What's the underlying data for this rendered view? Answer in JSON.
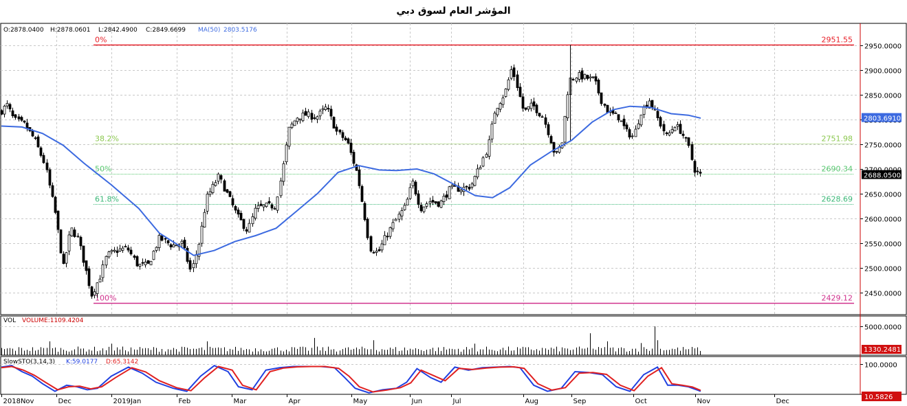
{
  "chart_data": {
    "type": "candlestick",
    "title": "المؤشر العام لسوق دبي",
    "ohlc_legend": {
      "open": "O:2878.0400",
      "high": "H:2878.0601",
      "low": "L:2842.4900",
      "close": "C:2849.6699",
      "ma": "MA(50)",
      "ma_value": "2803.5176"
    },
    "price_axis": {
      "ylim": [
        2405,
        2995
      ],
      "ticks": [
        "2950.0000",
        "2900.0000",
        "2850.0000",
        "2800.0000",
        "2750.0000",
        "2700.0000",
        "2650.0000",
        "2600.0000",
        "2550.0000",
        "2500.0000",
        "2450.0000"
      ],
      "tick_values": [
        2950,
        2900,
        2850,
        2800,
        2750,
        2700,
        2650,
        2600,
        2550,
        2500,
        2450
      ],
      "last_price": "2688.0500",
      "ma_last": "2803.6910"
    },
    "fibonacci": [
      {
        "label": "0%",
        "value": 2951.55,
        "value_label": "2951.55",
        "color": "#e8212a"
      },
      {
        "label": "38.2%",
        "value": 2751.98,
        "value_label": "2751.98",
        "color": "#8cc850"
      },
      {
        "label": "50%",
        "value": 2690.34,
        "value_label": "2690.34",
        "color": "#58c870"
      },
      {
        "label": "61.8%",
        "value": 2628.69,
        "value_label": "2628.69",
        "color": "#3cb878"
      },
      {
        "label": "100%",
        "value": 2429.12,
        "value_label": "2429.12",
        "color": "#d0308c"
      }
    ],
    "months": [
      "2018Nov",
      "Dec",
      "2019Jan",
      "Feb",
      "Mar",
      "Apr",
      "May",
      "Jun",
      "Jul",
      "Aug",
      "Sep",
      "Oct",
      "Nov",
      "Dec"
    ],
    "price_path": [
      {
        "t": 0,
        "v": 2815
      },
      {
        "t": 10,
        "v": 2830
      },
      {
        "t": 20,
        "v": 2800
      },
      {
        "t": 35,
        "v": 2790
      },
      {
        "t": 50,
        "v": 2760
      },
      {
        "t": 65,
        "v": 2710
      },
      {
        "t": 80,
        "v": 2610
      },
      {
        "t": 92,
        "v": 2500
      },
      {
        "t": 103,
        "v": 2580
      },
      {
        "t": 113,
        "v": 2560
      },
      {
        "t": 122,
        "v": 2510
      },
      {
        "t": 133,
        "v": 2445
      },
      {
        "t": 145,
        "v": 2480
      },
      {
        "t": 155,
        "v": 2525
      },
      {
        "t": 170,
        "v": 2535
      },
      {
        "t": 185,
        "v": 2540
      },
      {
        "t": 200,
        "v": 2505
      },
      {
        "t": 215,
        "v": 2505
      },
      {
        "t": 232,
        "v": 2560
      },
      {
        "t": 250,
        "v": 2545
      },
      {
        "t": 265,
        "v": 2550
      },
      {
        "t": 278,
        "v": 2490
      },
      {
        "t": 290,
        "v": 2555
      },
      {
        "t": 300,
        "v": 2640
      },
      {
        "t": 318,
        "v": 2685
      },
      {
        "t": 330,
        "v": 2650
      },
      {
        "t": 345,
        "v": 2605
      },
      {
        "t": 360,
        "v": 2575
      },
      {
        "t": 372,
        "v": 2620
      },
      {
        "t": 385,
        "v": 2625
      },
      {
        "t": 400,
        "v": 2625
      },
      {
        "t": 410,
        "v": 2690
      },
      {
        "t": 420,
        "v": 2780
      },
      {
        "t": 432,
        "v": 2805
      },
      {
        "t": 445,
        "v": 2810
      },
      {
        "t": 460,
        "v": 2805
      },
      {
        "t": 475,
        "v": 2825
      },
      {
        "t": 490,
        "v": 2775
      },
      {
        "t": 505,
        "v": 2755
      },
      {
        "t": 520,
        "v": 2690
      },
      {
        "t": 530,
        "v": 2610
      },
      {
        "t": 538,
        "v": 2540
      },
      {
        "t": 550,
        "v": 2530
      },
      {
        "t": 560,
        "v": 2560
      },
      {
        "t": 575,
        "v": 2595
      },
      {
        "t": 590,
        "v": 2625
      },
      {
        "t": 600,
        "v": 2675
      },
      {
        "t": 612,
        "v": 2620
      },
      {
        "t": 625,
        "v": 2635
      },
      {
        "t": 640,
        "v": 2630
      },
      {
        "t": 655,
        "v": 2660
      },
      {
        "t": 670,
        "v": 2660
      },
      {
        "t": 685,
        "v": 2665
      },
      {
        "t": 698,
        "v": 2705
      },
      {
        "t": 710,
        "v": 2745
      },
      {
        "t": 720,
        "v": 2820
      },
      {
        "t": 735,
        "v": 2855
      },
      {
        "t": 745,
        "v": 2905
      },
      {
        "t": 752,
        "v": 2870
      },
      {
        "t": 762,
        "v": 2815
      },
      {
        "t": 775,
        "v": 2830
      },
      {
        "t": 790,
        "v": 2805
      },
      {
        "t": 800,
        "v": 2765
      },
      {
        "t": 808,
        "v": 2725
      },
      {
        "t": 818,
        "v": 2755
      },
      {
        "t": 828,
        "v": 2880
      },
      {
        "t": 840,
        "v": 2890
      },
      {
        "t": 852,
        "v": 2885
      },
      {
        "t": 865,
        "v": 2880
      },
      {
        "t": 875,
        "v": 2840
      },
      {
        "t": 885,
        "v": 2815
      },
      {
        "t": 900,
        "v": 2805
      },
      {
        "t": 912,
        "v": 2775
      },
      {
        "t": 922,
        "v": 2765
      },
      {
        "t": 932,
        "v": 2815
      },
      {
        "t": 945,
        "v": 2840
      },
      {
        "t": 958,
        "v": 2800
      },
      {
        "t": 970,
        "v": 2765
      },
      {
        "t": 982,
        "v": 2790
      },
      {
        "t": 992,
        "v": 2775
      },
      {
        "t": 1002,
        "v": 2745
      },
      {
        "t": 1010,
        "v": 2700
      },
      {
        "t": 1018,
        "v": 2688
      }
    ],
    "ma50_path": [
      {
        "t": 0,
        "v": 2787
      },
      {
        "t": 30,
        "v": 2785
      },
      {
        "t": 60,
        "v": 2772
      },
      {
        "t": 90,
        "v": 2748
      },
      {
        "t": 120,
        "v": 2712
      },
      {
        "t": 160,
        "v": 2668
      },
      {
        "t": 200,
        "v": 2620
      },
      {
        "t": 230,
        "v": 2570
      },
      {
        "t": 255,
        "v": 2548
      },
      {
        "t": 280,
        "v": 2525
      },
      {
        "t": 310,
        "v": 2535
      },
      {
        "t": 340,
        "v": 2553
      },
      {
        "t": 370,
        "v": 2565
      },
      {
        "t": 400,
        "v": 2580
      },
      {
        "t": 430,
        "v": 2615
      },
      {
        "t": 460,
        "v": 2650
      },
      {
        "t": 490,
        "v": 2693
      },
      {
        "t": 520,
        "v": 2707
      },
      {
        "t": 550,
        "v": 2698
      },
      {
        "t": 575,
        "v": 2697
      },
      {
        "t": 605,
        "v": 2700
      },
      {
        "t": 630,
        "v": 2690
      },
      {
        "t": 660,
        "v": 2668
      },
      {
        "t": 690,
        "v": 2646
      },
      {
        "t": 715,
        "v": 2642
      },
      {
        "t": 740,
        "v": 2662
      },
      {
        "t": 770,
        "v": 2708
      },
      {
        "t": 800,
        "v": 2735
      },
      {
        "t": 830,
        "v": 2758
      },
      {
        "t": 860,
        "v": 2795
      },
      {
        "t": 890,
        "v": 2820
      },
      {
        "t": 915,
        "v": 2827
      },
      {
        "t": 945,
        "v": 2825
      },
      {
        "t": 975,
        "v": 2812
      },
      {
        "t": 1000,
        "v": 2809
      },
      {
        "t": 1018,
        "v": 2803
      }
    ],
    "volume": {
      "label": "VOL",
      "value_label": "VOLUME:1109.4204",
      "tick": "5000.0000",
      "tick_value": 5000,
      "ylim": [
        0,
        6800
      ],
      "last": "1330.2481",
      "spikes": [
        {
          "t": 68,
          "v": 2400
        },
        {
          "t": 160,
          "v": 2000
        },
        {
          "t": 300,
          "v": 2400
        },
        {
          "t": 457,
          "v": 3000
        },
        {
          "t": 540,
          "v": 2600
        },
        {
          "t": 690,
          "v": 2000
        },
        {
          "t": 857,
          "v": 3800
        },
        {
          "t": 880,
          "v": 2400
        },
        {
          "t": 930,
          "v": 2100
        },
        {
          "t": 950,
          "v": 5000
        },
        {
          "t": 955,
          "v": 2600
        }
      ]
    },
    "stochastic": {
      "label": "SlowSTO(3,14,3)",
      "k_label": "K:59.0177",
      "d_label": "D:65.3142",
      "tick": "100.0000",
      "tick_value": 100,
      "ylim": [
        0,
        125
      ],
      "last": "10.5826",
      "k_path": [
        {
          "t": 0,
          "v": 90
        },
        {
          "t": 15,
          "v": 95
        },
        {
          "t": 30,
          "v": 75
        },
        {
          "t": 45,
          "v": 60
        },
        {
          "t": 60,
          "v": 35
        },
        {
          "t": 78,
          "v": 10
        },
        {
          "t": 95,
          "v": 30
        },
        {
          "t": 110,
          "v": 25
        },
        {
          "t": 125,
          "v": 15
        },
        {
          "t": 140,
          "v": 20
        },
        {
          "t": 160,
          "v": 60
        },
        {
          "t": 185,
          "v": 90
        },
        {
          "t": 205,
          "v": 70
        },
        {
          "t": 225,
          "v": 40
        },
        {
          "t": 250,
          "v": 20
        },
        {
          "t": 270,
          "v": 10
        },
        {
          "t": 290,
          "v": 60
        },
        {
          "t": 310,
          "v": 95
        },
        {
          "t": 330,
          "v": 75
        },
        {
          "t": 345,
          "v": 25
        },
        {
          "t": 365,
          "v": 15
        },
        {
          "t": 385,
          "v": 80
        },
        {
          "t": 405,
          "v": 88
        },
        {
          "t": 425,
          "v": 92
        },
        {
          "t": 445,
          "v": 92
        },
        {
          "t": 465,
          "v": 92
        },
        {
          "t": 485,
          "v": 88
        },
        {
          "t": 500,
          "v": 55
        },
        {
          "t": 515,
          "v": 20
        },
        {
          "t": 535,
          "v": 5
        },
        {
          "t": 555,
          "v": 15
        },
        {
          "t": 575,
          "v": 20
        },
        {
          "t": 590,
          "v": 40
        },
        {
          "t": 605,
          "v": 85
        },
        {
          "t": 625,
          "v": 55
        },
        {
          "t": 640,
          "v": 40
        },
        {
          "t": 660,
          "v": 90
        },
        {
          "t": 680,
          "v": 80
        },
        {
          "t": 700,
          "v": 88
        },
        {
          "t": 720,
          "v": 90
        },
        {
          "t": 740,
          "v": 92
        },
        {
          "t": 755,
          "v": 88
        },
        {
          "t": 775,
          "v": 30
        },
        {
          "t": 795,
          "v": 10
        },
        {
          "t": 815,
          "v": 20
        },
        {
          "t": 835,
          "v": 75
        },
        {
          "t": 855,
          "v": 72
        },
        {
          "t": 875,
          "v": 65
        },
        {
          "t": 895,
          "v": 25
        },
        {
          "t": 915,
          "v": 10
        },
        {
          "t": 935,
          "v": 65
        },
        {
          "t": 955,
          "v": 90
        },
        {
          "t": 970,
          "v": 30
        },
        {
          "t": 985,
          "v": 30
        },
        {
          "t": 1000,
          "v": 25
        },
        {
          "t": 1018,
          "v": 10
        }
      ],
      "d_path": [
        {
          "t": 0,
          "v": 88
        },
        {
          "t": 15,
          "v": 92
        },
        {
          "t": 32,
          "v": 80
        },
        {
          "t": 48,
          "v": 63
        },
        {
          "t": 64,
          "v": 40
        },
        {
          "t": 82,
          "v": 15
        },
        {
          "t": 98,
          "v": 25
        },
        {
          "t": 114,
          "v": 27
        },
        {
          "t": 130,
          "v": 18
        },
        {
          "t": 146,
          "v": 25
        },
        {
          "t": 166,
          "v": 55
        },
        {
          "t": 190,
          "v": 88
        },
        {
          "t": 210,
          "v": 74
        },
        {
          "t": 230,
          "v": 45
        },
        {
          "t": 255,
          "v": 22
        },
        {
          "t": 276,
          "v": 12
        },
        {
          "t": 296,
          "v": 55
        },
        {
          "t": 316,
          "v": 92
        },
        {
          "t": 336,
          "v": 80
        },
        {
          "t": 351,
          "v": 30
        },
        {
          "t": 371,
          "v": 15
        },
        {
          "t": 391,
          "v": 75
        },
        {
          "t": 411,
          "v": 87
        },
        {
          "t": 431,
          "v": 91
        },
        {
          "t": 451,
          "v": 92
        },
        {
          "t": 471,
          "v": 92
        },
        {
          "t": 491,
          "v": 86
        },
        {
          "t": 506,
          "v": 60
        },
        {
          "t": 521,
          "v": 25
        },
        {
          "t": 541,
          "v": 8
        },
        {
          "t": 561,
          "v": 14
        },
        {
          "t": 581,
          "v": 22
        },
        {
          "t": 596,
          "v": 38
        },
        {
          "t": 611,
          "v": 80
        },
        {
          "t": 631,
          "v": 60
        },
        {
          "t": 646,
          "v": 45
        },
        {
          "t": 666,
          "v": 86
        },
        {
          "t": 686,
          "v": 82
        },
        {
          "t": 706,
          "v": 87
        },
        {
          "t": 726,
          "v": 90
        },
        {
          "t": 746,
          "v": 91
        },
        {
          "t": 761,
          "v": 86
        },
        {
          "t": 781,
          "v": 35
        },
        {
          "t": 801,
          "v": 14
        },
        {
          "t": 821,
          "v": 22
        },
        {
          "t": 841,
          "v": 70
        },
        {
          "t": 861,
          "v": 72
        },
        {
          "t": 881,
          "v": 66
        },
        {
          "t": 901,
          "v": 30
        },
        {
          "t": 921,
          "v": 12
        },
        {
          "t": 941,
          "v": 60
        },
        {
          "t": 961,
          "v": 88
        },
        {
          "t": 976,
          "v": 35
        },
        {
          "t": 991,
          "v": 30
        },
        {
          "t": 1006,
          "v": 24
        },
        {
          "t": 1018,
          "v": 13
        }
      ]
    },
    "colors": {
      "ma_line": "#3c6ae0",
      "k_line": "#2040e0",
      "d_line": "#e02020",
      "candle": "#000000",
      "grid": "#c8c8c8",
      "axis_red": "#cc0000",
      "price_box": "#000000",
      "ma_box": "#3c6ae0",
      "last_box": "#d01010"
    }
  }
}
